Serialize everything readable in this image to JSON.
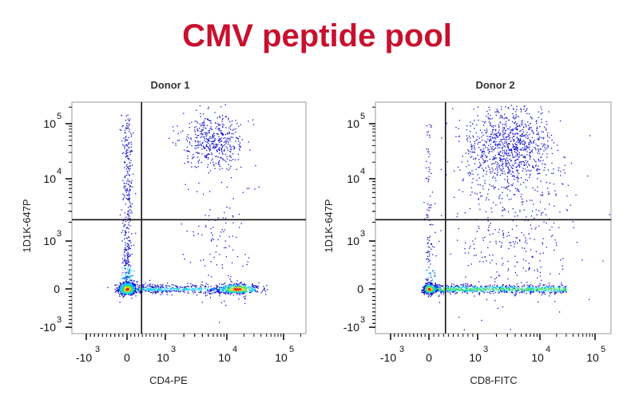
{
  "title": "CMV peptide pool",
  "colors": {
    "title": "#c8102e",
    "sparse": "#1010d0",
    "low": "#00c8ff",
    "mid": "#40e060",
    "high": "#f0e020",
    "peak": "#e02010"
  },
  "chart_data": [
    {
      "type": "scatter",
      "title": "Donor 1",
      "xlabel": "CD4-PE",
      "ylabel": "1D1K-647P",
      "x_scale": "biexponential",
      "y_scale": "biexponential",
      "xlim": [
        -2000,
        200000
      ],
      "ylim": [
        -1500,
        250000
      ],
      "x_ticks": [
        {
          "value": -1000,
          "base": "-10",
          "exp": "3"
        },
        {
          "value": 0,
          "base": "0",
          "exp": ""
        },
        {
          "value": 1000,
          "base": "10",
          "exp": "3"
        },
        {
          "value": 10000,
          "base": "10",
          "exp": "4"
        },
        {
          "value": 100000,
          "base": "10",
          "exp": "5"
        }
      ],
      "y_ticks": [
        {
          "value": -1000,
          "base": "-10",
          "exp": "3"
        },
        {
          "value": 0,
          "base": "0",
          "exp": ""
        },
        {
          "value": 1000,
          "base": "10",
          "exp": "3"
        },
        {
          "value": 10000,
          "base": "10",
          "exp": "4"
        },
        {
          "value": 100000,
          "base": "10",
          "exp": "5"
        }
      ],
      "quadrant_gate": {
        "x": 380,
        "y": 2200
      },
      "populations": [
        {
          "kind": "gauss",
          "center": [
            0,
            0
          ],
          "spread_decades": [
            0.12,
            0.08
          ],
          "events": 500,
          "hot": true
        },
        {
          "kind": "column",
          "x": 0,
          "y_range": [
            0,
            150000
          ],
          "spread_decades": 0.07,
          "events": 450
        },
        {
          "kind": "band",
          "x_range": [
            0,
            20000
          ],
          "y": 0,
          "spread_decades": 0.06,
          "events": 500
        },
        {
          "kind": "gauss",
          "center": [
            15000,
            0
          ],
          "spread_decades": [
            0.2,
            0.06
          ],
          "events": 450,
          "hot": true
        },
        {
          "kind": "gauss",
          "center": [
            6000,
            50000
          ],
          "spread_decades": [
            0.25,
            0.25
          ],
          "events": 450,
          "hot": false
        },
        {
          "kind": "gauss",
          "center": [
            8000,
            1000
          ],
          "spread_decades": [
            0.3,
            0.8
          ],
          "events": 120,
          "hot": false
        }
      ]
    },
    {
      "type": "scatter",
      "title": "Donor 2",
      "xlabel": "CD8-FITC",
      "ylabel": "1D1K-647P",
      "x_scale": "biexponential",
      "y_scale": "biexponential",
      "xlim": [
        -2000,
        200000
      ],
      "ylim": [
        -1500,
        250000
      ],
      "x_ticks": [
        {
          "value": -1000,
          "base": "-10",
          "exp": "3"
        },
        {
          "value": 0,
          "base": "0",
          "exp": ""
        },
        {
          "value": 1000,
          "base": "10",
          "exp": "3"
        },
        {
          "value": 10000,
          "base": "10",
          "exp": "4"
        },
        {
          "value": 100000,
          "base": "10",
          "exp": "5"
        }
      ],
      "y_ticks": [
        {
          "value": -1000,
          "base": "-10",
          "exp": "3"
        },
        {
          "value": 0,
          "base": "0",
          "exp": ""
        },
        {
          "value": 1000,
          "base": "10",
          "exp": "3"
        },
        {
          "value": 10000,
          "base": "10",
          "exp": "4"
        },
        {
          "value": 100000,
          "base": "10",
          "exp": "5"
        }
      ],
      "quadrant_gate": {
        "x": 340,
        "y": 2200
      },
      "populations": [
        {
          "kind": "gauss",
          "center": [
            0,
            0
          ],
          "spread_decades": [
            0.08,
            0.06
          ],
          "events": 400,
          "hot": true
        },
        {
          "kind": "band",
          "x_range": [
            0,
            30000
          ],
          "y": 0,
          "spread_decades": 0.05,
          "events": 900,
          "hot": true
        },
        {
          "kind": "gauss",
          "center": [
            3000,
            40000
          ],
          "spread_decades": [
            0.35,
            0.35
          ],
          "events": 900,
          "hot": false
        },
        {
          "kind": "gauss",
          "center": [
            4000,
            2000
          ],
          "spread_decades": [
            0.5,
            0.8
          ],
          "events": 400,
          "hot": false
        },
        {
          "kind": "column",
          "x": 0,
          "y_range": [
            0,
            100000
          ],
          "spread_decades": 0.05,
          "events": 120
        }
      ]
    }
  ]
}
